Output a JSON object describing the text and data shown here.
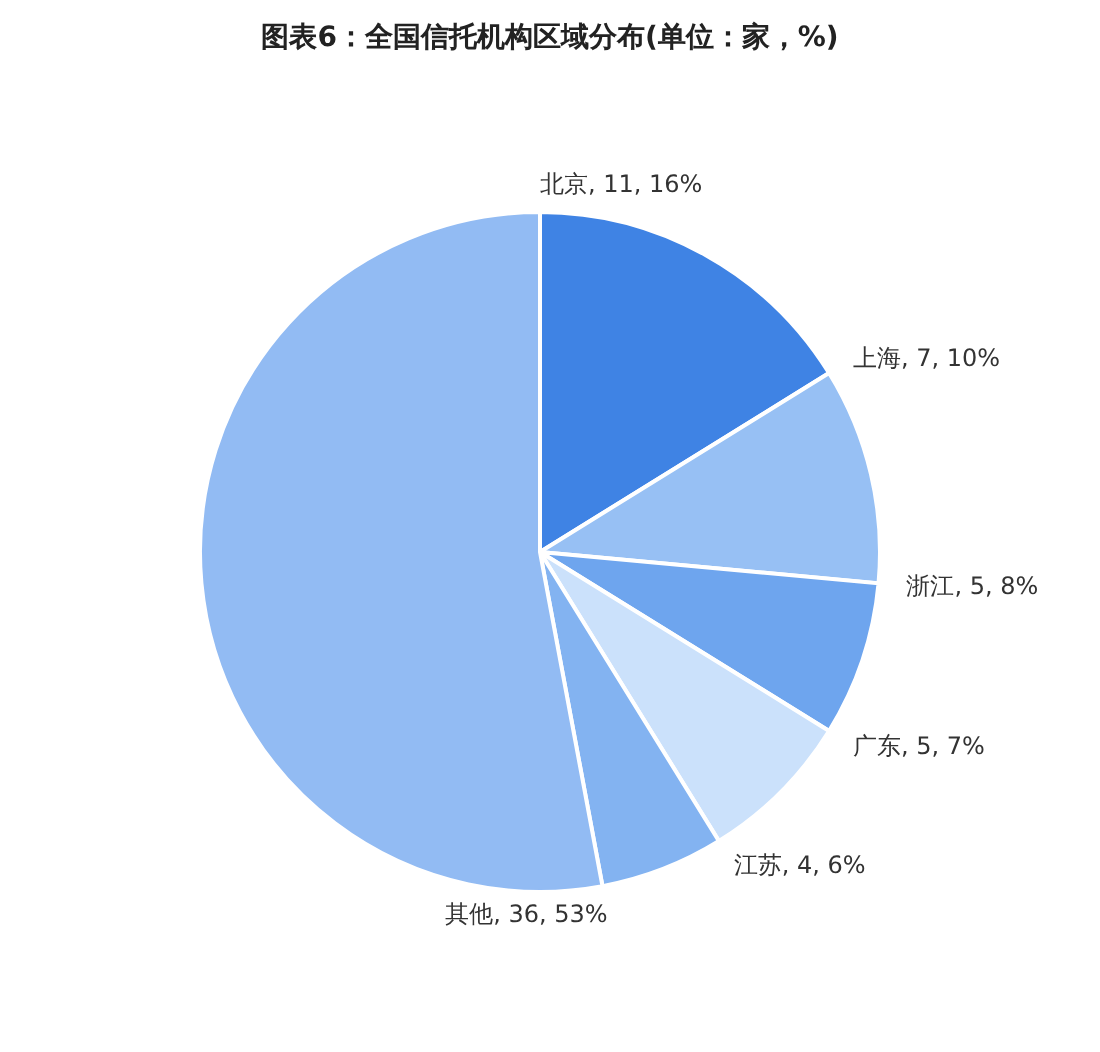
{
  "chart_data": {
    "type": "pie",
    "title": "图表6：全国信托机构区域分布(单位：家，%)",
    "categories": [
      "北京",
      "上海",
      "浙江",
      "广东",
      "江苏",
      "其他"
    ],
    "values": [
      11,
      7,
      5,
      5,
      4,
      36
    ],
    "value_labels": [
      "11, 16%",
      "7, 10%",
      "5, 8%",
      "5, 7%",
      "4, 6%",
      "36, 53%"
    ],
    "colors": [
      "#3f83e4",
      "#97c0f4",
      "#6ea5ee",
      "#cbe1fb",
      "#83b3f1",
      "#92bbf3"
    ],
    "legend": false
  }
}
